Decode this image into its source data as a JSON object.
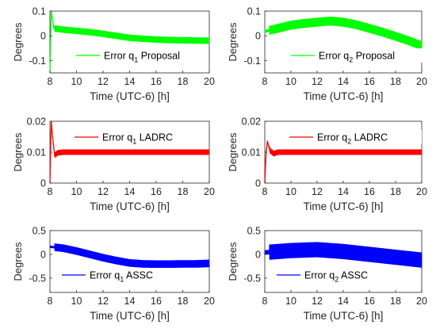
{
  "chart_data": [
    {
      "type": "line",
      "ylabel": "Degrees",
      "xlabel": "Time (UTC-6) [h]",
      "xlim": [
        8,
        20
      ],
      "ylim": [
        -0.15,
        0.1
      ],
      "xticks": [
        "8",
        "10",
        "12",
        "14",
        "16",
        "18",
        "20"
      ],
      "yticks": [
        "-0.1",
        "0",
        "0.1"
      ],
      "color": "#00ff00",
      "legend_location": "bottom-center",
      "series": [
        {
          "name": "Error q1 Proposal",
          "name_parts": [
            "Error q",
            "1",
            " Proposal"
          ],
          "x": [
            8.0,
            8.1,
            8.3,
            9,
            10,
            11,
            12,
            13,
            14,
            15,
            16,
            17,
            18,
            19,
            20
          ],
          "y": [
            -0.15,
            0.1,
            0.03,
            0.025,
            0.02,
            0.015,
            0.008,
            0.0,
            -0.008,
            -0.012,
            -0.015,
            -0.017,
            -0.018,
            -0.019,
            -0.02
          ],
          "band": 0.013
        }
      ]
    },
    {
      "type": "line",
      "ylabel": "Degrees",
      "xlabel": "Time (UTC-6) [h]",
      "xlim": [
        8,
        20
      ],
      "ylim": [
        -0.15,
        0.1
      ],
      "xticks": [
        "8",
        "10",
        "12",
        "14",
        "16",
        "18",
        "20"
      ],
      "yticks": [
        "-0.1",
        "0",
        "0.1"
      ],
      "color": "#00ff00",
      "legend_location": "bottom-center",
      "series": [
        {
          "name": "Error q2 Proposal",
          "name_parts": [
            "Error q",
            "2",
            " Proposal"
          ],
          "x": [
            8,
            9,
            10,
            11,
            12,
            13,
            14,
            15,
            16,
            17,
            18,
            19,
            20
          ],
          "y": [
            0.018,
            0.03,
            0.043,
            0.05,
            0.055,
            0.06,
            0.055,
            0.045,
            0.03,
            0.015,
            -0.002,
            -0.02,
            -0.04
          ],
          "band": 0.018
        }
      ]
    },
    {
      "type": "line",
      "ylabel": "Degrees",
      "xlabel": "Time (UTC-6) [h]",
      "xlim": [
        8,
        20
      ],
      "ylim": [
        0,
        0.02
      ],
      "xticks": [
        "8",
        "10",
        "12",
        "14",
        "16",
        "18",
        "20"
      ],
      "yticks": [
        "0",
        "0.01",
        "0.02"
      ],
      "color": "#ff0000",
      "legend_location": "top-center",
      "series": [
        {
          "name": "Error q1 LADRC",
          "name_parts": [
            "Error q",
            "1",
            " LADRC"
          ],
          "x": [
            8.0,
            8.1,
            8.2,
            8.35,
            8.6,
            9,
            10,
            12,
            14,
            16,
            18,
            20
          ],
          "y": [
            0.0,
            0.02,
            0.015,
            0.009,
            0.0098,
            0.01,
            0.01,
            0.01,
            0.01,
            0.01,
            0.01,
            0.01
          ],
          "band": 0.0009
        }
      ]
    },
    {
      "type": "line",
      "ylabel": "Degrees",
      "xlabel": "Time (UTC-6) [h]",
      "xlim": [
        8,
        20
      ],
      "ylim": [
        0,
        0.02
      ],
      "xticks": [
        "8",
        "10",
        "12",
        "14",
        "16",
        "18",
        "20"
      ],
      "yticks": [
        "0",
        "0.01",
        "0.02"
      ],
      "color": "#ff0000",
      "legend_location": "top-center",
      "series": [
        {
          "name": "Error q2 LADRC",
          "name_parts": [
            "Error q",
            "2",
            " LADRC"
          ],
          "x": [
            8.0,
            8.1,
            8.2,
            8.4,
            8.7,
            9,
            10,
            12,
            14,
            16,
            18,
            20
          ],
          "y": [
            0.0,
            0.0095,
            0.0135,
            0.0105,
            0.0095,
            0.01,
            0.01,
            0.01,
            0.01,
            0.01,
            0.01,
            0.01
          ],
          "band": 0.0009
        }
      ]
    },
    {
      "type": "line",
      "ylabel": "Degrees",
      "xlabel": "Time (UTC-6) [h]",
      "xlim": [
        8,
        20
      ],
      "ylim": [
        -0.8,
        0.5
      ],
      "xticks": [
        "8",
        "10",
        "12",
        "14",
        "16",
        "18",
        "20"
      ],
      "yticks": [
        "-0.5",
        "0",
        "0.5"
      ],
      "color": "#0000ff",
      "legend_location": "bottom-left",
      "series": [
        {
          "name": "Error q1 ASSC",
          "name_parts": [
            "Error q",
            "1",
            " ASSC"
          ],
          "x": [
            8,
            9,
            10,
            11,
            12,
            13,
            14,
            15,
            16,
            17,
            18,
            19,
            20
          ],
          "y": [
            0.16,
            0.13,
            0.07,
            0.0,
            -0.07,
            -0.13,
            -0.18,
            -0.2,
            -0.205,
            -0.205,
            -0.2,
            -0.2,
            -0.19
          ],
          "band": 0.08
        }
      ]
    },
    {
      "type": "line",
      "ylabel": "Degrees",
      "xlabel": "Time (UTC-6) [h]",
      "xlim": [
        8,
        20
      ],
      "ylim": [
        -0.8,
        0.5
      ],
      "xticks": [
        "8",
        "10",
        "12",
        "14",
        "16",
        "18",
        "20"
      ],
      "yticks": [
        "-0.5",
        "0",
        "0.5"
      ],
      "color": "#0000ff",
      "legend_location": "bottom-left",
      "series": [
        {
          "name": "Error q2 ASSC",
          "name_parts": [
            "Error q",
            "2",
            " ASSC"
          ],
          "x": [
            8,
            9,
            10,
            11,
            12,
            13,
            14,
            15,
            16,
            17,
            18,
            19,
            20
          ],
          "y": [
            0.04,
            0.06,
            0.08,
            0.09,
            0.1,
            0.08,
            0.06,
            0.03,
            0.0,
            -0.03,
            -0.06,
            -0.09,
            -0.12
          ],
          "band": 0.16
        }
      ]
    }
  ]
}
